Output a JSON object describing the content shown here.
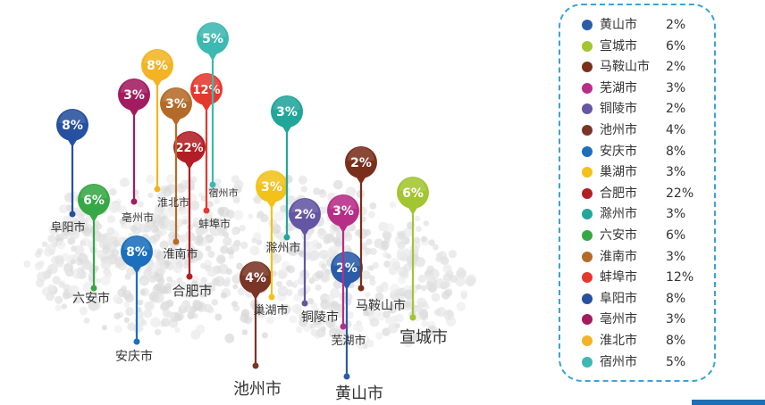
{
  "chart_data": {
    "type": "map-pin",
    "pins": [
      {
        "name": "黄山市",
        "value": "2%",
        "color": "#2a5ca8"
      },
      {
        "name": "宣城市",
        "value": "6%",
        "color": "#a2c531"
      },
      {
        "name": "马鞍山市",
        "value": "2%",
        "color": "#7a2f1c"
      },
      {
        "name": "芜湖市",
        "value": "3%",
        "color": "#b82d87"
      },
      {
        "name": "铜陵市",
        "value": "2%",
        "color": "#6456a3"
      },
      {
        "name": "池州市",
        "value": "4%",
        "color": "#7a3526"
      },
      {
        "name": "安庆市",
        "value": "8%",
        "color": "#1b6fbd"
      },
      {
        "name": "巢湖市",
        "value": "3%",
        "color": "#f2c21b"
      },
      {
        "name": "合肥市",
        "value": "22%",
        "color": "#b11f25"
      },
      {
        "name": "滁州市",
        "value": "3%",
        "color": "#21a69a"
      },
      {
        "name": "六安市",
        "value": "6%",
        "color": "#36a845"
      },
      {
        "name": "淮南市",
        "value": "3%",
        "color": "#b46b29"
      },
      {
        "name": "蚌埠市",
        "value": "12%",
        "color": "#e5392e"
      },
      {
        "name": "阜阳市",
        "value": "8%",
        "color": "#2650a0"
      },
      {
        "name": "亳州市",
        "value": "3%",
        "color": "#a21c5f"
      },
      {
        "name": "淮北市",
        "value": "8%",
        "color": "#f2b424"
      },
      {
        "name": "宿州市",
        "value": "5%",
        "color": "#3db8b2"
      }
    ]
  }
}
